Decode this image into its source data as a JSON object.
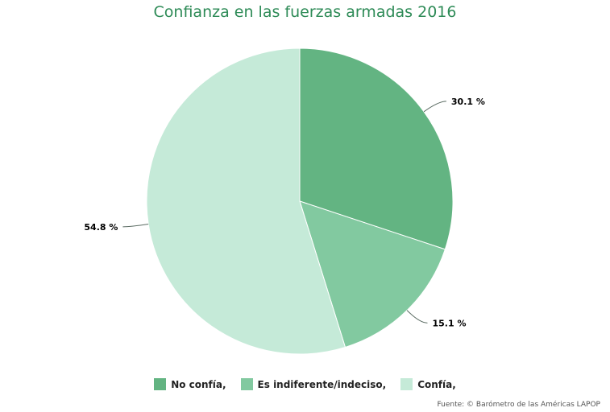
{
  "chart_data": {
    "type": "pie",
    "title": "Confianza en las fuerzas armadas 2016",
    "slices": [
      {
        "label": "No confía,",
        "value": 30.1,
        "display": "30.1 %",
        "color": "#63b482"
      },
      {
        "label": "Es indiferente/indeciso,",
        "value": 15.1,
        "display": "15.1 %",
        "color": "#82c9a0"
      },
      {
        "label": "Confía,",
        "value": 54.8,
        "display": "54.8 %",
        "color": "#c5ead8"
      }
    ],
    "legend_position": "bottom",
    "source": "Fuente: © Barómetro de las Américas LAPOP"
  }
}
